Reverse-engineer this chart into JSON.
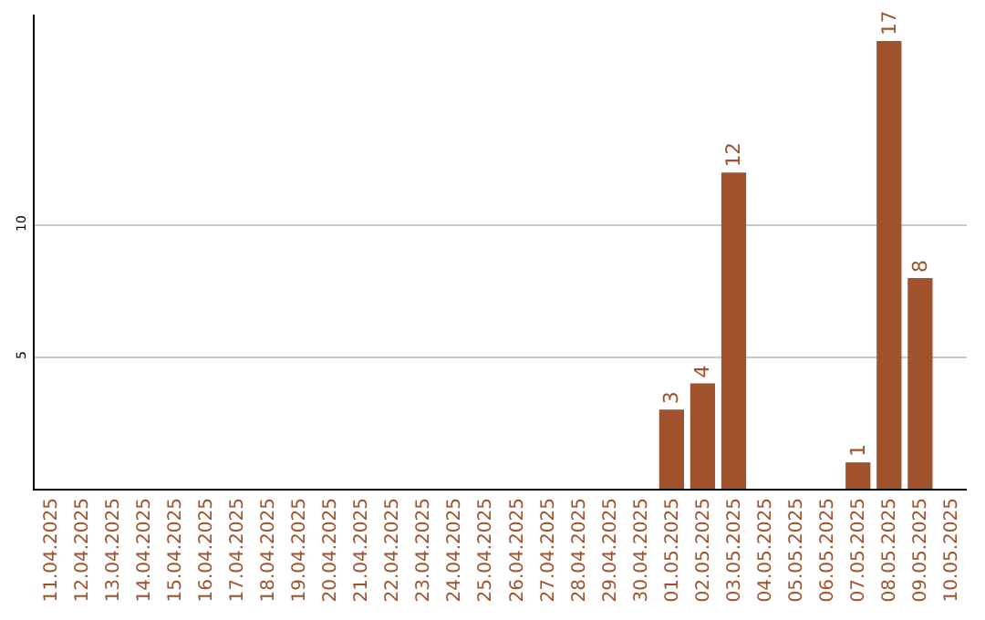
{
  "chart_data": {
    "type": "bar",
    "categories": [
      "11.04.2025",
      "12.04.2025",
      "13.04.2025",
      "14.04.2025",
      "15.04.2025",
      "16.04.2025",
      "17.04.2025",
      "18.04.2025",
      "19.04.2025",
      "20.04.2025",
      "21.04.2025",
      "22.04.2025",
      "23.04.2025",
      "24.04.2025",
      "25.04.2025",
      "26.04.2025",
      "27.04.2025",
      "28.04.2025",
      "29.04.2025",
      "30.04.2025",
      "01.05.2025",
      "02.05.2025",
      "03.05.2025",
      "04.05.2025",
      "05.05.2025",
      "06.05.2025",
      "07.05.2025",
      "08.05.2025",
      "09.05.2025",
      "10.05.2025"
    ],
    "values": [
      0,
      0,
      0,
      0,
      0,
      0,
      0,
      0,
      0,
      0,
      0,
      0,
      0,
      0,
      0,
      0,
      0,
      0,
      0,
      0,
      3,
      4,
      12,
      0,
      0,
      0,
      1,
      17,
      8,
      0
    ],
    "value_labels": [
      null,
      null,
      null,
      null,
      null,
      null,
      null,
      null,
      null,
      null,
      null,
      null,
      null,
      null,
      null,
      null,
      null,
      null,
      null,
      null,
      "3",
      "4",
      "12",
      null,
      null,
      null,
      "1",
      "17",
      "8",
      null
    ],
    "color": "#a0522d",
    "ylim": [
      0,
      18
    ],
    "yticks": [
      5,
      10
    ],
    "grid": "y",
    "legend": false
  }
}
